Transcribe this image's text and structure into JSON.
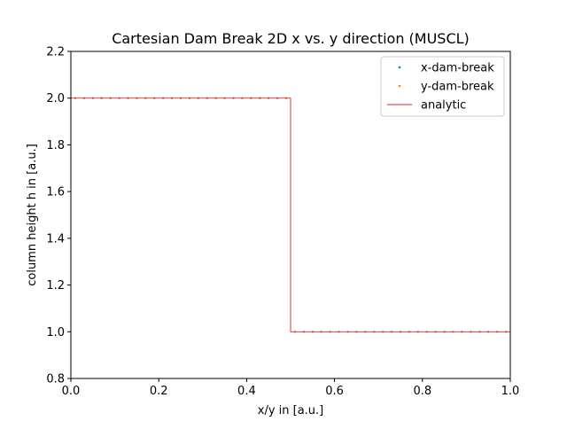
{
  "chart_data": {
    "type": "scatter",
    "title": "Cartesian Dam Break 2D x vs. y direction (MUSCL)",
    "xlabel": "x/y in [a.u.]",
    "ylabel": "column height h in [a.u.]",
    "xlim": [
      0.0,
      1.0
    ],
    "ylim": [
      0.8,
      2.2
    ],
    "xticks": [
      "0.0",
      "0.2",
      "0.4",
      "0.6",
      "0.8",
      "1.0"
    ],
    "yticks": [
      "0.8",
      "1.0",
      "1.2",
      "1.4",
      "1.6",
      "1.8",
      "2.0",
      "2.2"
    ],
    "grid": false,
    "legend_position": "upper right",
    "num_cells": 50,
    "discontinuity_x": 0.5,
    "h_left": 2.0,
    "h_right": 1.0,
    "series": [
      {
        "name": "x-dam-break",
        "kind": "points",
        "color": "#1f77b4"
      },
      {
        "name": "y-dam-break",
        "kind": "points",
        "color": "#ff7f0e"
      },
      {
        "name": "analytic",
        "kind": "line",
        "color": "#d62728",
        "x": [
          0.0,
          0.5,
          0.5,
          1.0
        ],
        "y": [
          2.0,
          2.0,
          1.0,
          1.0
        ]
      }
    ]
  }
}
